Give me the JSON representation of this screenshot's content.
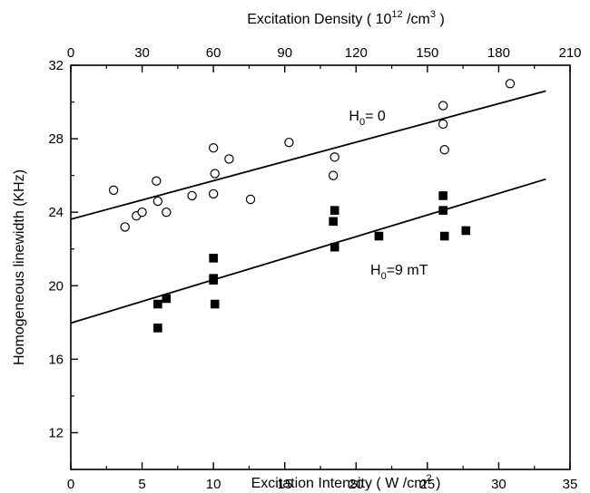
{
  "chart_data": {
    "type": "scatter",
    "title": "",
    "xlabel": "Excitation Intensity",
    "xlabel_unit": "( W /cm",
    "xlabel_unit_exp": "2",
    "xlabel_unit_close": " )",
    "ylabel": "Homogeneous linewidth (KHz)",
    "x2label": "Excitation Density",
    "x2label_unit": "( 10",
    "x2label_unit_exp1": "12",
    "x2label_unit_mid": " /cm",
    "x2label_unit_exp2": "3",
    "x2label_unit_close": " )",
    "xlim": [
      0,
      35
    ],
    "ylim": [
      10,
      32
    ],
    "x2lim": [
      0,
      210
    ],
    "x_ticks": [
      0,
      5,
      10,
      15,
      20,
      25,
      30,
      35
    ],
    "y_ticks": [
      12,
      16,
      20,
      24,
      28,
      32
    ],
    "x2_ticks": [
      0,
      30,
      60,
      90,
      120,
      150,
      180,
      210
    ],
    "grid": false,
    "series": [
      {
        "marker": "open-circle",
        "color": "#000000",
        "points": [
          [
            3.0,
            25.2
          ],
          [
            3.8,
            23.2
          ],
          [
            4.6,
            23.8
          ],
          [
            5.0,
            24.0
          ],
          [
            6.0,
            25.7
          ],
          [
            6.1,
            24.6
          ],
          [
            6.7,
            24.0
          ],
          [
            8.5,
            24.9
          ],
          [
            10.0,
            27.5
          ],
          [
            10.1,
            26.1
          ],
          [
            10.0,
            25.0
          ],
          [
            11.1,
            26.9
          ],
          [
            12.6,
            24.7
          ],
          [
            15.3,
            27.8
          ],
          [
            18.5,
            27.0
          ],
          [
            18.4,
            26.0
          ],
          [
            26.1,
            29.8
          ],
          [
            26.1,
            28.8
          ],
          [
            26.2,
            27.4
          ],
          [
            30.8,
            31.0
          ]
        ],
        "fit": {
          "x": [
            -2,
            33.3
          ],
          "y": [
            23.2,
            30.6
          ]
        }
      },
      {
        "marker": "filled-square",
        "color": "#000000",
        "points": [
          [
            6.1,
            19.0
          ],
          [
            6.1,
            17.7
          ],
          [
            6.7,
            19.3
          ],
          [
            10.0,
            21.5
          ],
          [
            10.0,
            20.4
          ],
          [
            10.0,
            20.3
          ],
          [
            10.1,
            19.0
          ],
          [
            18.5,
            24.1
          ],
          [
            18.4,
            23.5
          ],
          [
            18.5,
            22.1
          ],
          [
            21.6,
            22.7
          ],
          [
            26.1,
            24.9
          ],
          [
            26.1,
            24.1
          ],
          [
            26.2,
            22.7
          ],
          [
            27.7,
            23.0
          ]
        ],
        "fit": {
          "x": [
            -2,
            33.3
          ],
          "y": [
            17.5,
            25.8
          ]
        }
      }
    ],
    "annotations": [
      {
        "text_main": "H",
        "text_sub": "0",
        "text_rest": "= 0",
        "x": 19.5,
        "y": 29.0
      },
      {
        "text_main": "H",
        "text_sub": "0",
        "text_rest": "=9 mT",
        "x": 21.0,
        "y": 20.6
      }
    ]
  }
}
